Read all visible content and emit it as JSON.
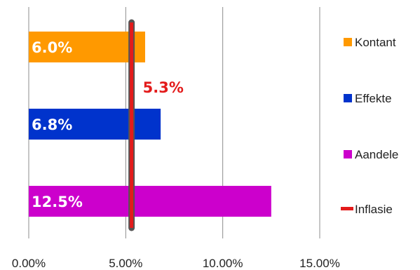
{
  "chart_data": {
    "type": "bar",
    "orientation": "horizontal",
    "categories": [
      "Kontant",
      "Effekte",
      "Aandele"
    ],
    "values": [
      6.0,
      6.8,
      12.5
    ],
    "value_labels": [
      "6.0%",
      "6.8%",
      "12.5%"
    ],
    "colors": [
      "#ff9900",
      "#0033cc",
      "#cc00cc"
    ],
    "reference_line": {
      "name": "Inflasie",
      "value": 5.3,
      "label": "5.3%",
      "color": "#e31b1b"
    },
    "x_ticks": [
      0,
      5,
      10,
      15
    ],
    "x_tick_labels": [
      "0.00%",
      "5.00%",
      "10.00%",
      "15.00%"
    ],
    "xlim": [
      0,
      15
    ],
    "grid": "vertical",
    "legend": {
      "position": "right",
      "entries": [
        {
          "label": "Kontant",
          "color": "#ff9900",
          "marker": "square"
        },
        {
          "label": "Effekte",
          "color": "#0033cc",
          "marker": "square"
        },
        {
          "label": "Aandele",
          "color": "#cc00cc",
          "marker": "square"
        },
        {
          "label": "Inflasie",
          "color": "#e31b1b",
          "marker": "line"
        }
      ]
    }
  }
}
